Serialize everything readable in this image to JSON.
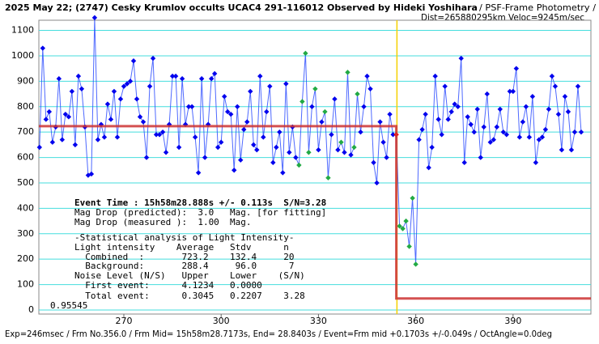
{
  "chart_data": {
    "type": "scatter",
    "title": "2025 May 22; (2747) Cesky Krumlov occults UCAC4 291-116012 Observed by Hideki Yoshihara",
    "subtitle": "/ PSF-Frame Photometry /",
    "subtitle2": "Dist=265880295km Veloc=9245m/sec",
    "footer": "Exp=246msec / Frm No.356.0 / Frm Mid= 15h58m28.7173s,  End= 28.8403s / Event=Frm mid +0.1703s +/-0.049s / OctAngle=0.0deg",
    "annotations": [
      "Event Time : 15h58m28.888s +/- 0.113s  S/N=3.28",
      "Mag Drop (predicted):  3.0   Mag. [for fitting]",
      "Mag Drop (measured ):  1.00  Mag.",
      "-Statistical analysis of Light Intensity-",
      "Light intensity    Average   Stdv      n",
      "  Combined  :       723.2    132.4     20",
      "  Background:       288.4     96.0      7",
      "Noise Level (N/S)   Upper    Lower    (S/N)",
      "  First event:      4.1234   0.0000",
      "  Total event:      0.3045   0.2207    3.28",
      "0.95545"
    ],
    "xlim": [
      243.8,
      414
    ],
    "xticks": [
      270,
      300,
      330,
      360,
      390
    ],
    "ylim": [
      -16,
      1140
    ],
    "yticks": [
      0,
      100,
      200,
      300,
      400,
      500,
      600,
      700,
      800,
      900,
      1000,
      1100
    ],
    "grid": true,
    "grid_color": "#44dddd",
    "event_line": 354.2,
    "event_color": "#f5d000",
    "series": [
      {
        "color": "#2244ff",
        "x": [
          244,
          245,
          246,
          247,
          248,
          249,
          250,
          251,
          252,
          253,
          254,
          255,
          256,
          257,
          258,
          259,
          260,
          261,
          262,
          263,
          264,
          265,
          266,
          267,
          268,
          269,
          270,
          271,
          272,
          273,
          274,
          275,
          276,
          277,
          278,
          279,
          280,
          281,
          282,
          283,
          284,
          285,
          286,
          287,
          288,
          289,
          290,
          291,
          292,
          293,
          294,
          295,
          296,
          297,
          298,
          299,
          300,
          301,
          302,
          303,
          304,
          305,
          306,
          307,
          308,
          309,
          310,
          311,
          312,
          313,
          314,
          315,
          316,
          317,
          318,
          319,
          320,
          321,
          322,
          323,
          324,
          325,
          326,
          327,
          328,
          329,
          330,
          331,
          332,
          333,
          334,
          335,
          336,
          337,
          338,
          339,
          340,
          341,
          342,
          343,
          344,
          345,
          346,
          347,
          348,
          349,
          350,
          351,
          352,
          353,
          354,
          355,
          356,
          357,
          358,
          359,
          360,
          361,
          362,
          363,
          364,
          365,
          366,
          367,
          368,
          369,
          370,
          371,
          372,
          373,
          374,
          375,
          376,
          377,
          378,
          379,
          380,
          381,
          382,
          383,
          384,
          385,
          386,
          387,
          388,
          389,
          390,
          391,
          392,
          393,
          394,
          395,
          396,
          397,
          398,
          399,
          400,
          401,
          402,
          403,
          404,
          405,
          406,
          407,
          408,
          409,
          410,
          411
        ],
        "values": [
          640,
          1030,
          750,
          780,
          660,
          720,
          910,
          670,
          770,
          760,
          860,
          650,
          920,
          870,
          720,
          530,
          535,
          1150,
          670,
          730,
          680,
          810,
          750,
          860,
          680,
          830,
          880,
          890,
          900,
          980,
          830,
          760,
          740,
          600,
          880,
          990,
          690,
          690,
          700,
          620,
          730,
          920,
          920,
          640,
          910,
          730,
          800,
          800,
          680,
          540,
          910,
          600,
          730,
          910,
          930,
          640,
          660,
          840,
          780,
          770,
          550,
          800,
          590,
          710,
          740,
          860,
          650,
          630,
          920,
          680,
          780,
          880,
          580,
          640,
          700,
          540,
          890,
          620,
          720,
          600,
          570,
          820,
          1010,
          620,
          800,
          870,
          630,
          740,
          780,
          520,
          690,
          830,
          630,
          660,
          620,
          935,
          610,
          640,
          850,
          700,
          800,
          920,
          870,
          580,
          500,
          740,
          660,
          600,
          770,
          690,
          690,
          330,
          320,
          350,
          250,
          440,
          180,
          670,
          710,
          770,
          560,
          640,
          920,
          750,
          690,
          880,
          750,
          780,
          810,
          800,
          990,
          580,
          760,
          730,
          700,
          790,
          600,
          720,
          850,
          660,
          670,
          720,
          790,
          700,
          690,
          860,
          860,
          950,
          680,
          740,
          800,
          680,
          840,
          580,
          670,
          680,
          710,
          790,
          920,
          880,
          770,
          630,
          840,
          780,
          630,
          700,
          880,
          700
        ],
        "point_colors": [
          "#0000ee",
          "#0000ee",
          "#0000ee",
          "#0000ee",
          "#0000ee",
          "#0000ee",
          "#0000ee",
          "#0000ee",
          "#0000ee",
          "#0000ee",
          "#0000ee",
          "#0000ee",
          "#0000ee",
          "#0000ee",
          "#0000ee",
          "#0000ee",
          "#0000ee",
          "#0000ee",
          "#0000ee",
          "#0000ee",
          "#0000ee",
          "#0000ee",
          "#0000ee",
          "#0000ee",
          "#0000ee",
          "#0000ee",
          "#0000ee",
          "#0000ee",
          "#0000ee",
          "#0000ee",
          "#0000ee",
          "#0000ee",
          "#0000ee",
          "#0000ee",
          "#0000ee",
          "#0000ee",
          "#0000ee",
          "#0000ee",
          "#0000ee",
          "#0000ee",
          "#0000ee",
          "#0000ee",
          "#0000ee",
          "#0000ee",
          "#0000ee",
          "#0000ee",
          "#0000ee",
          "#0000ee",
          "#0000ee",
          "#0000ee",
          "#0000ee",
          "#0000ee",
          "#0000ee",
          "#0000ee",
          "#0000ee",
          "#0000ee",
          "#0000ee",
          "#0000ee",
          "#0000ee",
          "#0000ee",
          "#0000ee",
          "#0000ee",
          "#0000ee",
          "#0000ee",
          "#0000ee",
          "#0000ee",
          "#0000ee",
          "#0000ee",
          "#0000ee",
          "#0000ee",
          "#0000ee",
          "#0000ee",
          "#0000ee",
          "#0000ee",
          "#0000ee",
          "#0000ee",
          "#0000ee",
          "#0000ee",
          "#0000ee",
          "#0000ee",
          "#22aa44",
          "#22aa44",
          "#22aa44",
          "#22aa44",
          "#0000ee",
          "#22aa44",
          "#0000ee",
          "#0000ee",
          "#22aa44",
          "#22aa44",
          "#0000ee",
          "#0000ee",
          "#0000ee",
          "#22aa44",
          "#0000ee",
          "#22aa44",
          "#0000ee",
          "#22aa44",
          "#22aa44",
          "#0000ee",
          "#0000ee",
          "#0000ee",
          "#0000ee",
          "#0000ee",
          "#0000ee",
          "#0000ee",
          "#0000ee",
          "#0000ee",
          "#0000ee",
          "#0000ee",
          "#ff0000",
          "#22aa44",
          "#22aa44",
          "#22aa44",
          "#22aa44",
          "#22aa44",
          "#22aa44",
          "#0000ee",
          "#0000ee",
          "#0000ee",
          "#0000ee",
          "#0000ee",
          "#0000ee",
          "#0000ee",
          "#0000ee",
          "#0000ee",
          "#0000ee",
          "#0000ee",
          "#0000ee",
          "#0000ee",
          "#0000ee",
          "#0000ee",
          "#0000ee",
          "#0000ee",
          "#0000ee",
          "#0000ee",
          "#0000ee",
          "#0000ee",
          "#0000ee",
          "#0000ee",
          "#0000ee",
          "#0000ee",
          "#0000ee",
          "#0000ee",
          "#0000ee",
          "#0000ee",
          "#0000ee",
          "#0000ee",
          "#0000ee",
          "#0000ee",
          "#0000ee",
          "#0000ee",
          "#0000ee",
          "#0000ee",
          "#0000ee",
          "#0000ee",
          "#0000ee",
          "#0000ee",
          "#0000ee",
          "#0000ee",
          "#0000ee",
          "#0000ee",
          "#0000ee",
          "#0000ee",
          "#0000ee",
          "#0000ee",
          "#0000ee",
          "#0000ee"
        ],
        "markers": true
      },
      {
        "color": "#cc3333",
        "x": [
          243.8,
          354,
          354,
          414
        ],
        "values": [
          723.2,
          723.2,
          45,
          45
        ],
        "markers": false
      }
    ]
  }
}
